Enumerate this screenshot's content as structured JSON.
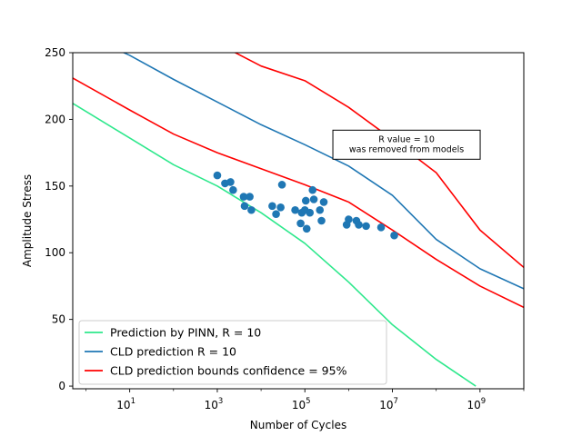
{
  "chart_data": {
    "type": "line",
    "title": "",
    "xlabel": "Number of Cycles",
    "ylabel": "Amplitude Stress",
    "x_scale": "log",
    "xlim": [
      0.5,
      10000000000.0
    ],
    "ylim": [
      -2,
      250
    ],
    "x_ticks": [
      {
        "value": 10,
        "base": "10",
        "exp": "1"
      },
      {
        "value": 1000,
        "base": "10",
        "exp": "3"
      },
      {
        "value": 100000,
        "base": "10",
        "exp": "5"
      },
      {
        "value": 10000000,
        "base": "10",
        "exp": "7"
      },
      {
        "value": 1000000000,
        "base": "10",
        "exp": "9"
      }
    ],
    "y_ticks": [
      0,
      50,
      100,
      150,
      200,
      250
    ],
    "grid": false,
    "legend_position": "lower-left",
    "annotation": {
      "lines": [
        "R value = 10",
        "was removed from models"
      ],
      "x": 20000000,
      "y": 181
    },
    "series": [
      {
        "name": "Prediction by PINN, R = 10",
        "color": "#2ee88c",
        "kind": "line",
        "points": [
          [
            0.5,
            212
          ],
          [
            10,
            186
          ],
          [
            100,
            166
          ],
          [
            1000,
            150
          ],
          [
            10000,
            130
          ],
          [
            100000,
            107
          ],
          [
            1000000,
            78
          ],
          [
            10000000,
            46
          ],
          [
            100000000,
            20
          ],
          [
            800000000,
            0
          ]
        ]
      },
      {
        "name": "CLD prediction R = 10",
        "color": "#1f77b4",
        "kind": "line",
        "points": [
          [
            4,
            254
          ],
          [
            10,
            248
          ],
          [
            100,
            230
          ],
          [
            1000,
            213
          ],
          [
            10000,
            196
          ],
          [
            100000,
            181
          ],
          [
            1000000,
            165
          ],
          [
            10000000,
            143
          ],
          [
            100000000,
            110
          ],
          [
            1000000000,
            88
          ],
          [
            10000000000,
            73
          ]
        ]
      },
      {
        "name": "CLD prediction bounds confidence = 95%",
        "color": "#ff0000",
        "kind": "line",
        "points": [
          [
            0.5,
            231
          ],
          [
            10,
            207
          ],
          [
            100,
            189
          ],
          [
            1000,
            175
          ],
          [
            10000,
            163
          ],
          [
            100000,
            151
          ],
          [
            1000000,
            138
          ],
          [
            10000000,
            117
          ],
          [
            100000000,
            95
          ],
          [
            1000000000,
            75
          ],
          [
            10000000000,
            59
          ]
        ]
      },
      {
        "name": "",
        "color": "#ff0000",
        "kind": "line",
        "points": [
          [
            1500,
            254
          ],
          [
            10000,
            240
          ],
          [
            100000,
            229
          ],
          [
            1000000,
            209
          ],
          [
            10000000,
            185
          ],
          [
            100000000,
            160
          ],
          [
            1000000000,
            117
          ],
          [
            10000000000,
            89
          ]
        ]
      },
      {
        "name": "",
        "color": "#1f77b4",
        "kind": "scatter",
        "points": [
          [
            1000,
            158
          ],
          [
            1500,
            152
          ],
          [
            2000,
            153
          ],
          [
            2300,
            147
          ],
          [
            4000,
            142
          ],
          [
            4200,
            135
          ],
          [
            5500,
            142
          ],
          [
            6000,
            132
          ],
          [
            18000,
            135
          ],
          [
            22000,
            129
          ],
          [
            28000,
            134
          ],
          [
            30000,
            151
          ],
          [
            60000,
            132
          ],
          [
            80000,
            122
          ],
          [
            85000,
            130
          ],
          [
            100000,
            132
          ],
          [
            105000,
            139
          ],
          [
            110000,
            118
          ],
          [
            130000,
            130
          ],
          [
            150000,
            147
          ],
          [
            160000,
            140
          ],
          [
            220000,
            132
          ],
          [
            240000,
            124
          ],
          [
            270000,
            138
          ],
          [
            900000,
            121
          ],
          [
            1000000,
            125
          ],
          [
            1500000,
            124
          ],
          [
            1700000,
            121
          ],
          [
            2500000,
            120
          ],
          [
            5500000,
            119
          ],
          [
            11000000,
            113
          ]
        ]
      }
    ]
  }
}
